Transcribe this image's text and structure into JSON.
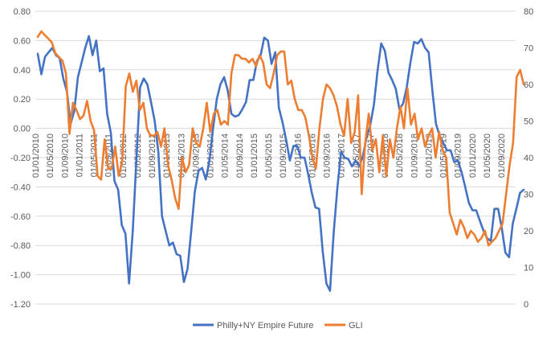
{
  "chart_data": {
    "type": "line",
    "title": "",
    "xlabel": "",
    "ylabel": "",
    "left_axis": {
      "min": -1.2,
      "max": 0.8,
      "step": 0.2,
      "tick_labels": [
        "0.80",
        "0.60",
        "0.40",
        "0.20",
        "0.00",
        "-0.20",
        "-0.40",
        "-0.60",
        "-0.80",
        "-1.00",
        "-1.20"
      ]
    },
    "right_axis": {
      "min": 0,
      "max": 80,
      "step": 10,
      "tick_labels": [
        "80",
        "70",
        "60",
        "50",
        "40",
        "30",
        "20",
        "10",
        "0"
      ]
    },
    "x_tick_labels": [
      "01/01/2010",
      "01/05/2010",
      "01/09/2010",
      "01/01/2011",
      "01/05/2011",
      "01/09/2011",
      "01/01/2012",
      "01/05/2012",
      "01/09/2012",
      "01/01/2013",
      "01/05/2013",
      "01/09/2013",
      "01/01/2014",
      "01/05/2014",
      "01/09/2014",
      "01/01/2015",
      "01/05/2015",
      "01/09/2015",
      "01/01/2016",
      "01/05/2016",
      "01/09/2016",
      "01/01/2017",
      "01/05/2017",
      "01/09/2017",
      "01/01/2018",
      "01/05/2018",
      "01/09/2018",
      "01/01/2019",
      "01/05/2019",
      "01/09/2019",
      "01/01/2020",
      "01/05/2020",
      "01/09/2020"
    ],
    "grid": true,
    "legend_position": "bottom",
    "series": [
      {
        "name": "Philly+NY Empire Future",
        "axis": "left",
        "color": "#4472C4",
        "values": [
          0.51,
          0.37,
          0.49,
          0.52,
          0.55,
          0.5,
          0.48,
          0.34,
          0.25,
          0.03,
          0.12,
          0.35,
          0.45,
          0.55,
          0.63,
          0.5,
          0.6,
          0.39,
          0.41,
          0.1,
          -0.03,
          -0.36,
          -0.42,
          -0.66,
          -0.72,
          -1.06,
          -0.7,
          -0.22,
          0.28,
          0.34,
          0.3,
          0.18,
          0.05,
          -0.16,
          -0.6,
          -0.7,
          -0.8,
          -0.78,
          -0.86,
          -0.87,
          -1.05,
          -0.96,
          -0.7,
          -0.43,
          -0.29,
          -0.27,
          -0.35,
          -0.22,
          0.0,
          0.2,
          0.3,
          0.35,
          0.26,
          0.1,
          0.08,
          0.09,
          0.13,
          0.18,
          0.33,
          0.33,
          0.46,
          0.5,
          0.62,
          0.6,
          0.44,
          0.52,
          0.14,
          0.04,
          -0.08,
          -0.22,
          -0.12,
          -0.12,
          -0.2,
          -0.2,
          -0.31,
          -0.44,
          -0.54,
          -0.55,
          -0.84,
          -1.06,
          -1.11,
          -0.71,
          -0.41,
          -0.16,
          -0.2,
          -0.21,
          -0.26,
          -0.22,
          -0.26,
          -0.19,
          -0.06,
          0.02,
          0.16,
          0.39,
          0.58,
          0.53,
          0.38,
          0.33,
          0.27,
          0.13,
          0.17,
          0.28,
          0.45,
          0.59,
          0.58,
          0.61,
          0.55,
          0.52,
          0.26,
          0.03,
          -0.05,
          -0.1,
          -0.15,
          -0.15,
          -0.23,
          -0.22,
          -0.3,
          -0.4,
          -0.51,
          -0.56,
          -0.56,
          -0.63,
          -0.7,
          -0.75,
          -0.77,
          -0.55,
          -0.55,
          -0.68,
          -0.85,
          -0.88,
          -0.65,
          -0.55,
          -0.44,
          -0.42
        ]
      },
      {
        "name": "GLI",
        "axis": "right",
        "color": "#ED7D31",
        "values": [
          73,
          74.5,
          73.5,
          72.5,
          71.5,
          68.5,
          67.5,
          66.5,
          63,
          46.5,
          55,
          53,
          50.5,
          51.5,
          55.5,
          50,
          47.5,
          35,
          34,
          45,
          37,
          37,
          43,
          35,
          39,
          59.5,
          63,
          58,
          61,
          53,
          55,
          48,
          46,
          46,
          47,
          43,
          48,
          38,
          34,
          29,
          26,
          40,
          36,
          38,
          48,
          44,
          43,
          48,
          55,
          47,
          52,
          53,
          49,
          50,
          49,
          63,
          68,
          68,
          67,
          67,
          66,
          67,
          65,
          68,
          66,
          60,
          59,
          63,
          68,
          69,
          69,
          60,
          61,
          56,
          53,
          53,
          51,
          46,
          40,
          37,
          48,
          56,
          60,
          59,
          57,
          54,
          49,
          46,
          56,
          44,
          47,
          57,
          30,
          44,
          52,
          42,
          45,
          36,
          46,
          35,
          45,
          40,
          48,
          54,
          48,
          59,
          49,
          52,
          45,
          48,
          43,
          46,
          48,
          40,
          47,
          42,
          40,
          25,
          22,
          19,
          23,
          21,
          18,
          20,
          19,
          17,
          18,
          20,
          16,
          17,
          18,
          20,
          22,
          30,
          38,
          44,
          62,
          64,
          60
        ]
      }
    ]
  },
  "legend": [
    {
      "label": "Philly+NY Empire Future",
      "color": "#4472C4"
    },
    {
      "label": "GLI",
      "color": "#ED7D31"
    }
  ]
}
